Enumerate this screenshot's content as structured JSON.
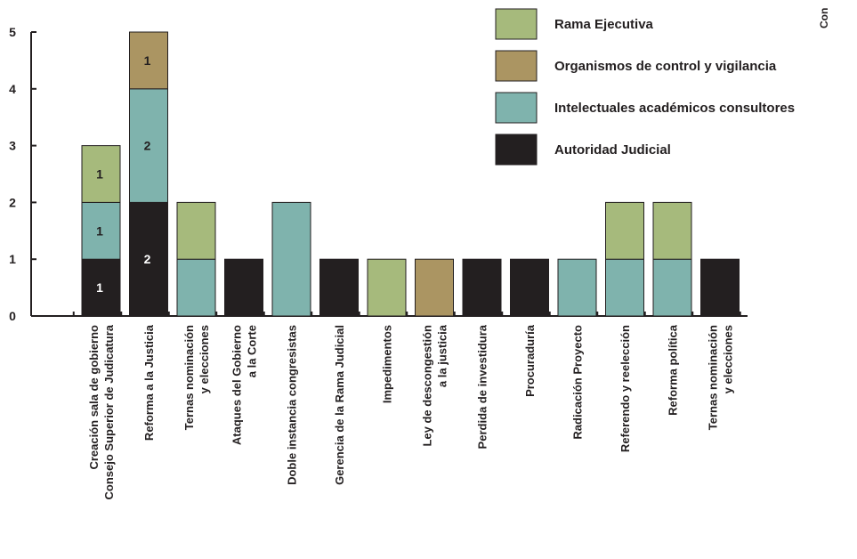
{
  "chart_data": {
    "type": "bar",
    "stacked": true,
    "ylim": [
      0,
      5
    ],
    "yticks": [
      "0",
      "1",
      "2",
      "3",
      "4",
      "5"
    ],
    "grid": false,
    "legend_position": "top-right",
    "categories": [
      [
        "Creación sala de gobierno",
        "Consejo Superior de Judicatura"
      ],
      [
        "Reforma a la Justicia"
      ],
      [
        "Ternas nominación",
        "y elecciones"
      ],
      [
        "Ataques del Gobierno",
        "a la Corte"
      ],
      [
        "Doble instancia congresistas"
      ],
      [
        "Gerencia de la Rama Judicial"
      ],
      [
        "Impedimentos"
      ],
      [
        "Ley de descongestión",
        "a la justicia"
      ],
      [
        "Perdida de investidura"
      ],
      [
        "Procuraduría"
      ],
      [
        "Radicación Proyecto"
      ],
      [
        "Referendo y reelección"
      ],
      [
        "Reforma política"
      ],
      [
        "Ternas nominación",
        "y elecciones"
      ]
    ],
    "series": [
      {
        "name": "Autoridad Judicial",
        "color": "#231f20",
        "values": [
          1,
          2,
          0,
          1,
          0,
          1,
          0,
          0,
          1,
          1,
          0,
          0,
          0,
          1
        ],
        "labels": [
          "1",
          "2",
          "",
          "",
          "",
          "",
          "",
          "",
          "",
          "",
          "",
          "",
          "",
          ""
        ]
      },
      {
        "name": "Intelectuales académicos consultores",
        "color": "#7fb3ad",
        "values": [
          1,
          2,
          1,
          0,
          2,
          0,
          0,
          0,
          0,
          0,
          1,
          1,
          1,
          0
        ],
        "labels": [
          "1",
          "2",
          "",
          "",
          "",
          "",
          "",
          "",
          "",
          "",
          "",
          "",
          "",
          ""
        ]
      },
      {
        "name": "Organismos de control y vigilancia",
        "color": "#ab9562",
        "values": [
          0,
          1,
          0,
          0,
          0,
          0,
          0,
          1,
          0,
          0,
          0,
          0,
          0,
          0
        ],
        "labels": [
          "",
          "1",
          "",
          "",
          "",
          "",
          "",
          "",
          "",
          "",
          "",
          "",
          "",
          ""
        ]
      },
      {
        "name": "Rama Ejecutiva",
        "color": "#a6ba7c",
        "values": [
          1,
          0,
          1,
          0,
          0,
          0,
          1,
          0,
          0,
          0,
          0,
          1,
          1,
          0
        ],
        "labels": [
          "1",
          "",
          "",
          "",
          "",
          "",
          "",
          "",
          "",
          "",
          "",
          "",
          "",
          ""
        ]
      }
    ],
    "legend_order": [
      "Rama Ejecutiva",
      "Organismos de control y vigilancia",
      "Intelectuales académicos consultores",
      "Autoridad Judicial"
    ],
    "corner_text": "Con"
  }
}
